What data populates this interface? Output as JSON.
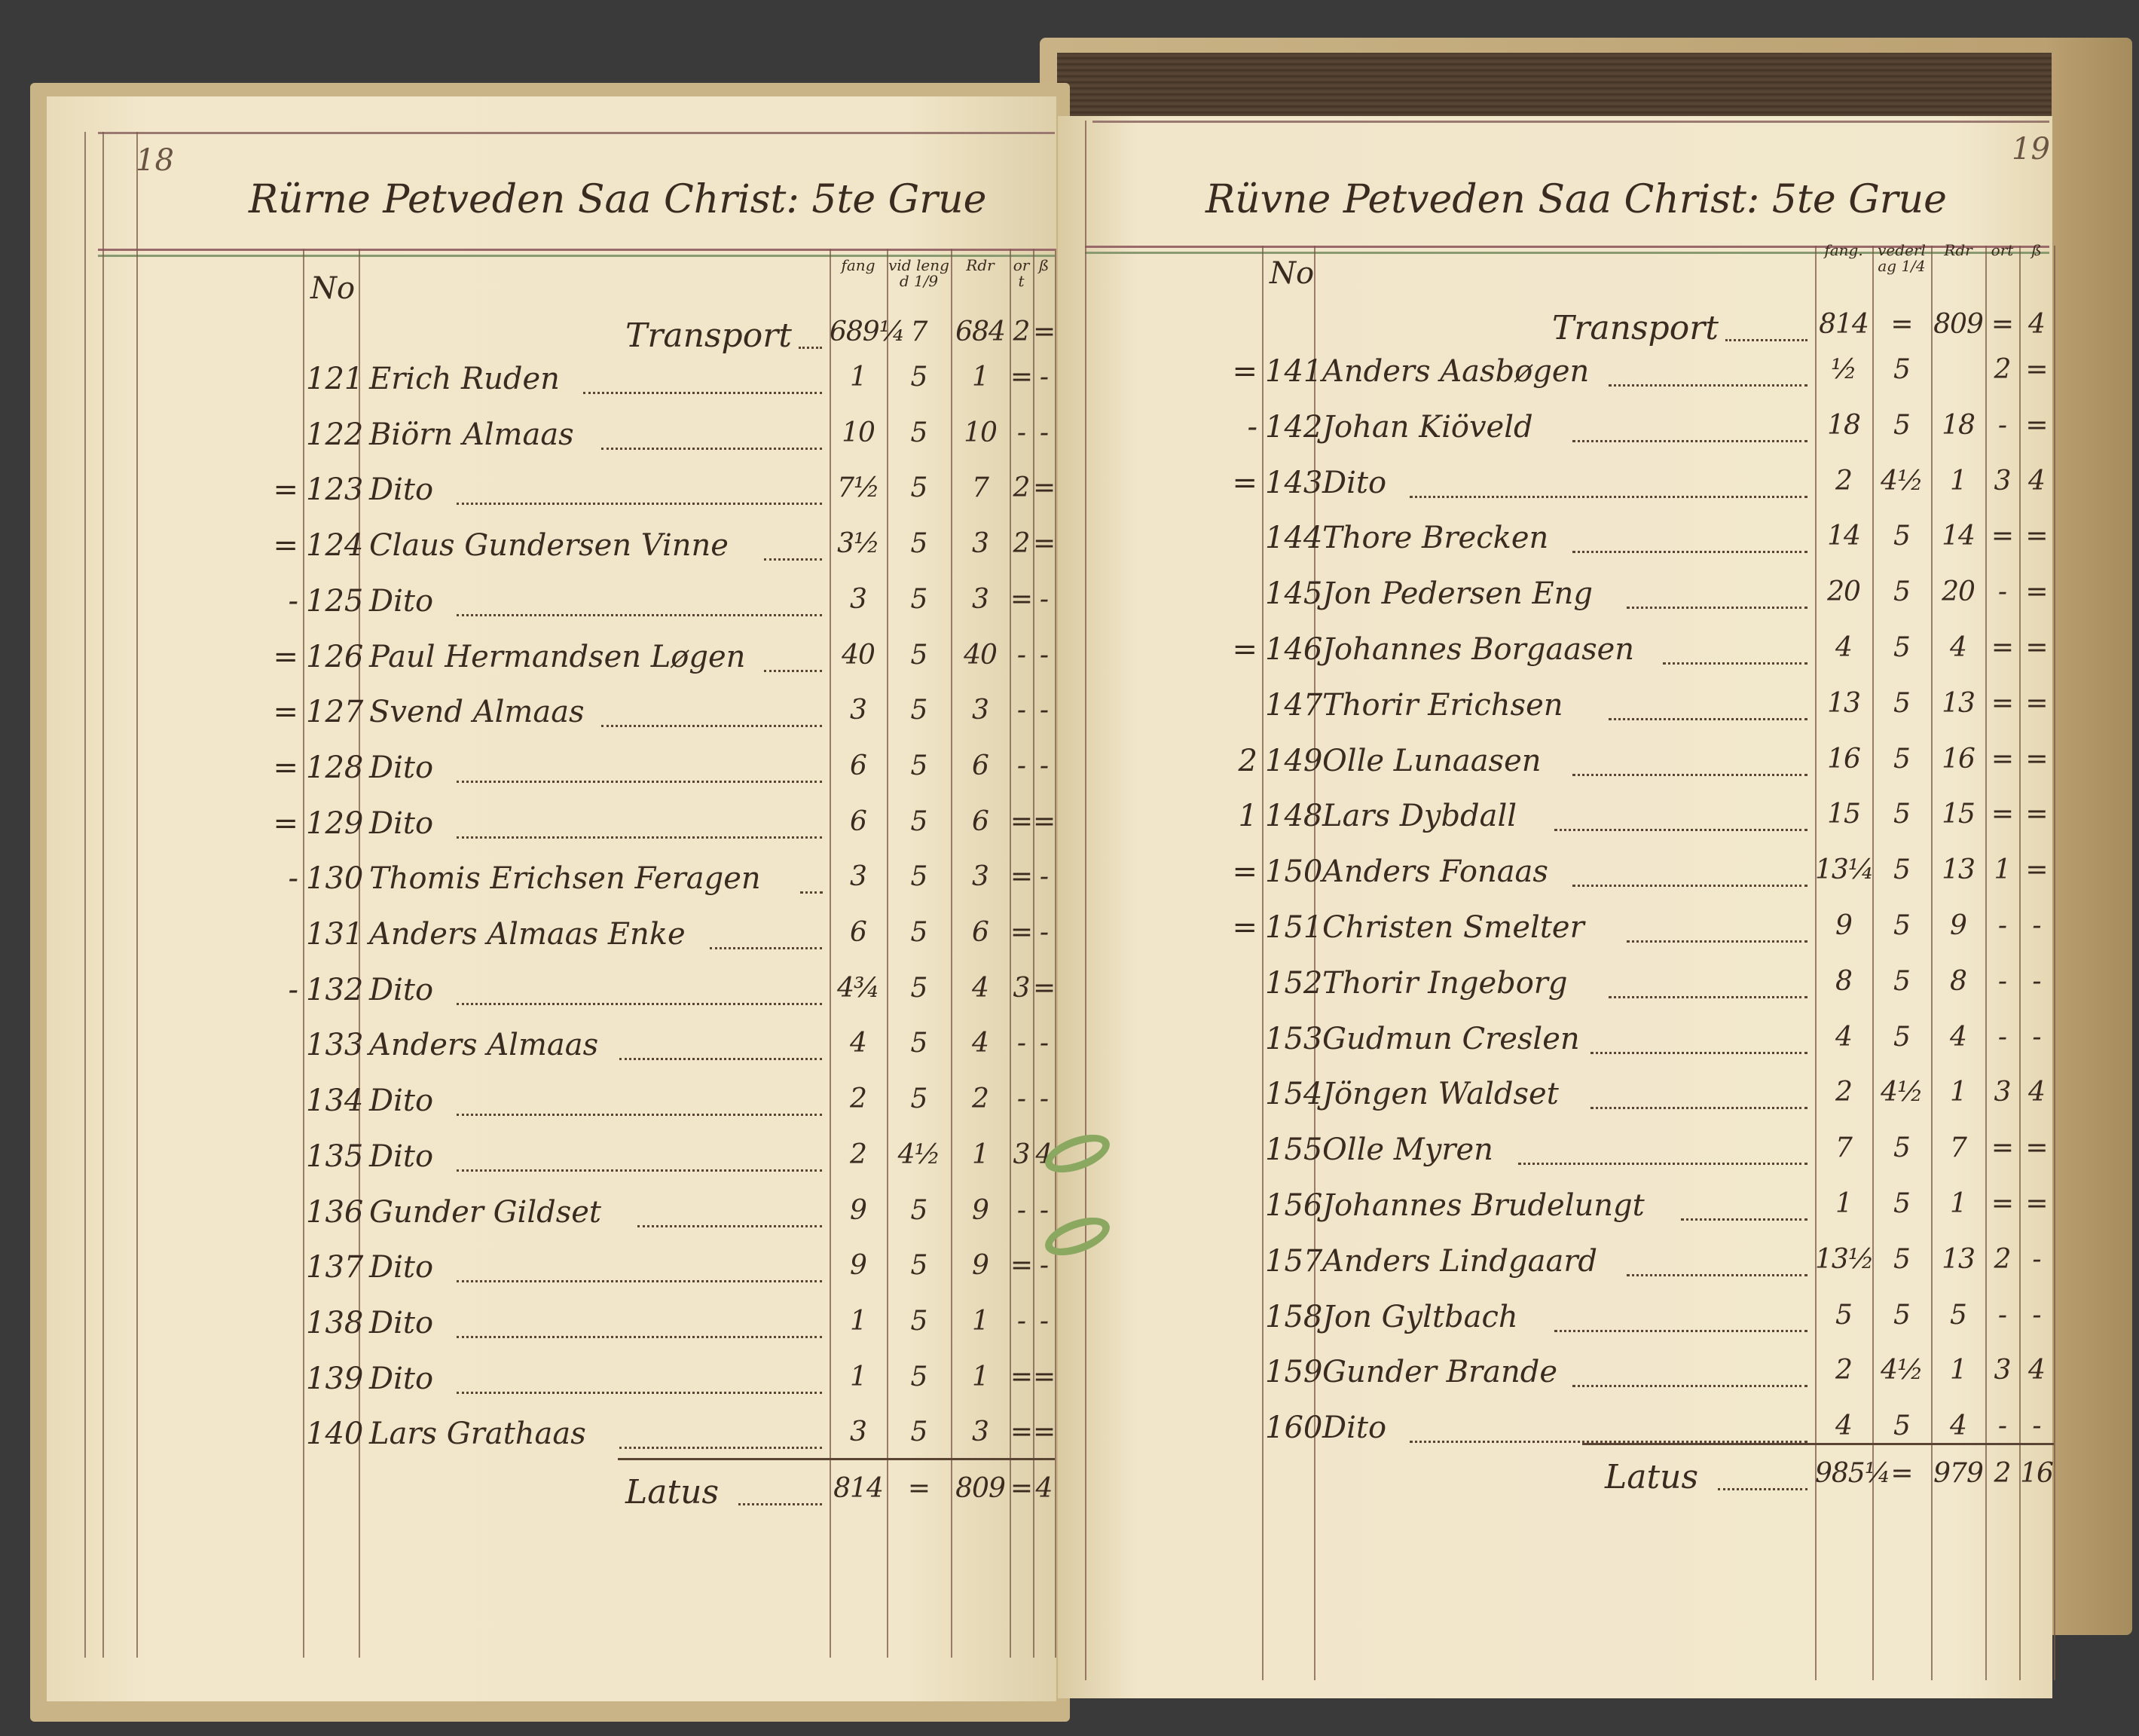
{
  "left_page": {
    "page_number": "18",
    "title": "Rürne Petveden Saa Christ: 5te Grue",
    "headers": {
      "no": "No",
      "fang": "fang",
      "vederlag": "vid lengd 1/9",
      "rdr": "Rdr",
      "ort": "ort",
      "sk": "ß"
    },
    "transport": {
      "label": "Transport",
      "fang": "689¼",
      "vederlag": "7",
      "rdr": "684",
      "ort": "2",
      "sk": "="
    },
    "rows": [
      {
        "prefix": "",
        "no": "121",
        "name": "Erich Ruden",
        "fang": "1",
        "vederlag": "5",
        "rdr": "1",
        "ort": "=",
        "sk": "-"
      },
      {
        "prefix": "",
        "no": "122",
        "name": "Biörn Almaas",
        "fang": "10",
        "vederlag": "5",
        "rdr": "10",
        "ort": "-",
        "sk": "-"
      },
      {
        "prefix": "=",
        "no": "123",
        "name": "Dito",
        "fang": "7½",
        "vederlag": "5",
        "rdr": "7",
        "ort": "2",
        "sk": "="
      },
      {
        "prefix": "=",
        "no": "124",
        "name": "Claus Gundersen Vinne",
        "fang": "3½",
        "vederlag": "5",
        "rdr": "3",
        "ort": "2",
        "sk": "="
      },
      {
        "prefix": "-",
        "no": "125",
        "name": "Dito",
        "fang": "3",
        "vederlag": "5",
        "rdr": "3",
        "ort": "=",
        "sk": "-"
      },
      {
        "prefix": "=",
        "no": "126",
        "name": "Paul Hermandsen Løgen",
        "fang": "40",
        "vederlag": "5",
        "rdr": "40",
        "ort": "-",
        "sk": "-"
      },
      {
        "prefix": "=",
        "no": "127",
        "name": "Svend Almaas",
        "fang": "3",
        "vederlag": "5",
        "rdr": "3",
        "ort": "-",
        "sk": "-"
      },
      {
        "prefix": "=",
        "no": "128",
        "name": "Dito",
        "fang": "6",
        "vederlag": "5",
        "rdr": "6",
        "ort": "-",
        "sk": "-"
      },
      {
        "prefix": "=",
        "no": "129",
        "name": "Dito",
        "fang": "6",
        "vederlag": "5",
        "rdr": "6",
        "ort": "=",
        "sk": "="
      },
      {
        "prefix": "-",
        "no": "130",
        "name": "Thomis Erichsen Feragen",
        "fang": "3",
        "vederlag": "5",
        "rdr": "3",
        "ort": "=",
        "sk": "-"
      },
      {
        "prefix": "",
        "no": "131",
        "name": "Anders Almaas Enke",
        "fang": "6",
        "vederlag": "5",
        "rdr": "6",
        "ort": "=",
        "sk": "-"
      },
      {
        "prefix": "-",
        "no": "132",
        "name": "Dito",
        "fang": "4¾",
        "vederlag": "5",
        "rdr": "4",
        "ort": "3",
        "sk": "="
      },
      {
        "prefix": "",
        "no": "133",
        "name": "Anders Almaas",
        "fang": "4",
        "vederlag": "5",
        "rdr": "4",
        "ort": "-",
        "sk": "-"
      },
      {
        "prefix": "",
        "no": "134",
        "name": "Dito",
        "fang": "2",
        "vederlag": "5",
        "rdr": "2",
        "ort": "-",
        "sk": "-"
      },
      {
        "prefix": "",
        "no": "135",
        "name": "Dito",
        "fang": "2",
        "vederlag": "4½",
        "rdr": "1",
        "ort": "3",
        "sk": "4"
      },
      {
        "prefix": "",
        "no": "136",
        "name": "Gunder Gildset",
        "fang": "9",
        "vederlag": "5",
        "rdr": "9",
        "ort": "-",
        "sk": "-"
      },
      {
        "prefix": "",
        "no": "137",
        "name": "Dito",
        "fang": "9",
        "vederlag": "5",
        "rdr": "9",
        "ort": "=",
        "sk": "-"
      },
      {
        "prefix": "",
        "no": "138",
        "name": "Dito",
        "fang": "1",
        "vederlag": "5",
        "rdr": "1",
        "ort": "-",
        "sk": "-"
      },
      {
        "prefix": "",
        "no": "139",
        "name": "Dito",
        "fang": "1",
        "vederlag": "5",
        "rdr": "1",
        "ort": "=",
        "sk": "="
      },
      {
        "prefix": "",
        "no": "140",
        "name": "Lars Grathaas",
        "fang": "3",
        "vederlag": "5",
        "rdr": "3",
        "ort": "=",
        "sk": "="
      }
    ],
    "latus": {
      "label": "Latus",
      "fang": "814",
      "vederlag": "=",
      "rdr": "809",
      "ort": "=",
      "sk": "4"
    }
  },
  "right_page": {
    "page_number": "19",
    "title": "Rüvne Petveden Saa Christ: 5te Grue",
    "headers": {
      "no": "No",
      "fang": "fang.",
      "vederlag": "vederlag 1/4",
      "rdr": "Rdr",
      "ort": "ort",
      "sk": "ß"
    },
    "transport": {
      "label": "Transport",
      "fang": "814",
      "vederlag": "=",
      "rdr": "809",
      "ort": "=",
      "sk": "4"
    },
    "rows": [
      {
        "prefix": "=",
        "no": "141",
        "name": "Anders Aasbøgen",
        "fang": "½",
        "vederlag": "5",
        "rdr": "",
        "ort": "2",
        "sk": "="
      },
      {
        "prefix": "-",
        "no": "142",
        "name": "Johan Kiöveld",
        "fang": "18",
        "vederlag": "5",
        "rdr": "18",
        "ort": "-",
        "sk": "="
      },
      {
        "prefix": "=",
        "no": "143",
        "name": "Dito",
        "fang": "2",
        "vederlag": "4½",
        "rdr": "1",
        "ort": "3",
        "sk": "4"
      },
      {
        "prefix": "",
        "no": "144",
        "name": "Thore Brecken",
        "fang": "14",
        "vederlag": "5",
        "rdr": "14",
        "ort": "=",
        "sk": "="
      },
      {
        "prefix": "",
        "no": "145",
        "name": "Jon Pedersen Eng",
        "fang": "20",
        "vederlag": "5",
        "rdr": "20",
        "ort": "-",
        "sk": "="
      },
      {
        "prefix": "=",
        "no": "146",
        "name": "Johannes Borgaasen",
        "fang": "4",
        "vederlag": "5",
        "rdr": "4",
        "ort": "=",
        "sk": "="
      },
      {
        "prefix": "",
        "no": "147",
        "name": "Thorir Erichsen",
        "fang": "13",
        "vederlag": "5",
        "rdr": "13",
        "ort": "=",
        "sk": "="
      },
      {
        "prefix": "2",
        "no": "149",
        "name": "Olle Lunaasen",
        "fang": "16",
        "vederlag": "5",
        "rdr": "16",
        "ort": "=",
        "sk": "="
      },
      {
        "prefix": "1",
        "no": "148",
        "name": "Lars Dybdall",
        "fang": "15",
        "vederlag": "5",
        "rdr": "15",
        "ort": "=",
        "sk": "="
      },
      {
        "prefix": "=",
        "no": "150",
        "name": "Anders Fonaas",
        "fang": "13¼",
        "vederlag": "5",
        "rdr": "13",
        "ort": "1",
        "sk": "="
      },
      {
        "prefix": "=",
        "no": "151",
        "name": "Christen Smelter",
        "fang": "9",
        "vederlag": "5",
        "rdr": "9",
        "ort": "-",
        "sk": "-"
      },
      {
        "prefix": "",
        "no": "152",
        "name": "Thorir Ingeborg",
        "fang": "8",
        "vederlag": "5",
        "rdr": "8",
        "ort": "-",
        "sk": "-"
      },
      {
        "prefix": "",
        "no": "153",
        "name": "Gudmun Creslen",
        "fang": "4",
        "vederlag": "5",
        "rdr": "4",
        "ort": "-",
        "sk": "-"
      },
      {
        "prefix": "",
        "no": "154",
        "name": "Jöngen Waldset",
        "fang": "2",
        "vederlag": "4½",
        "rdr": "1",
        "ort": "3",
        "sk": "4"
      },
      {
        "prefix": "",
        "no": "155",
        "name": "Olle Myren",
        "fang": "7",
        "vederlag": "5",
        "rdr": "7",
        "ort": "=",
        "sk": "="
      },
      {
        "prefix": "",
        "no": "156",
        "name": "Johannes Brudelungt",
        "fang": "1",
        "vederlag": "5",
        "rdr": "1",
        "ort": "=",
        "sk": "="
      },
      {
        "prefix": "",
        "no": "157",
        "name": "Anders Lindgaard",
        "fang": "13½",
        "vederlag": "5",
        "rdr": "13",
        "ort": "2",
        "sk": "-"
      },
      {
        "prefix": "",
        "no": "158",
        "name": "Jon Gyltbach",
        "fang": "5",
        "vederlag": "5",
        "rdr": "5",
        "ort": "-",
        "sk": "-"
      },
      {
        "prefix": "",
        "no": "159",
        "name": "Gunder Brande",
        "fang": "2",
        "vederlag": "4½",
        "rdr": "1",
        "ort": "3",
        "sk": "4"
      },
      {
        "prefix": "",
        "no": "160",
        "name": "Dito",
        "fang": "4",
        "vederlag": "5",
        "rdr": "4",
        "ort": "-",
        "sk": "-"
      }
    ],
    "latus": {
      "label": "Latus",
      "fang": "985¼",
      "vederlag": "=",
      "rdr": "979",
      "ort": "2",
      "sk": "16"
    }
  },
  "colors": {
    "ink": "#3b2a1f",
    "parchment": "#f1e6c9",
    "ruling_red": "#9a6a6a",
    "ruling_green": "#8a9a70",
    "thread": "#8aa860"
  }
}
